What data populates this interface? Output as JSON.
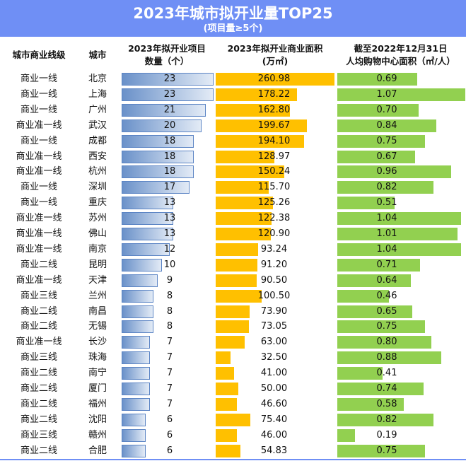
{
  "header": {
    "title": "2023年城市拟开业量TOP25",
    "subtitle": "(项目量≥5个)"
  },
  "columns": {
    "tier": "城市商业线级",
    "city": "城市",
    "count_l1": "2023年拟开业项目",
    "count_l2": "数量（个）",
    "area_l1": "2023年拟开业商业面积",
    "area_l2": "(万㎡)",
    "percap_l1": "截至2022年12月31日",
    "percap_l2": "人均购物中心面积（㎡/人）"
  },
  "colors": {
    "banner": "#6f8ff5",
    "count_bar": "#6a91c9",
    "area_bar": "#ffc000",
    "percap_bar": "#92d050"
  },
  "chart_data": {
    "type": "table",
    "rows": [
      {
        "tier": "商业一线",
        "city": "北京",
        "count": "23",
        "area": "260.98",
        "percap": "0.69"
      },
      {
        "tier": "商业一线",
        "city": "上海",
        "count": "23",
        "area": "178.22",
        "percap": "1.07"
      },
      {
        "tier": "商业一线",
        "city": "广州",
        "count": "21",
        "area": "162.80",
        "percap": "0.70"
      },
      {
        "tier": "商业准一线",
        "city": "武汉",
        "count": "20",
        "area": "199.67",
        "percap": "0.84"
      },
      {
        "tier": "商业一线",
        "city": "成都",
        "count": "18",
        "area": "194.10",
        "percap": "0.75"
      },
      {
        "tier": "商业准一线",
        "city": "西安",
        "count": "18",
        "area": "128.97",
        "percap": "0.67"
      },
      {
        "tier": "商业准一线",
        "city": "杭州",
        "count": "18",
        "area": "150.24",
        "percap": "0.96"
      },
      {
        "tier": "商业一线",
        "city": "深圳",
        "count": "17",
        "area": "115.70",
        "percap": "0.82"
      },
      {
        "tier": "商业一线",
        "city": "重庆",
        "count": "13",
        "area": "125.26",
        "percap": "0.51"
      },
      {
        "tier": "商业准一线",
        "city": "苏州",
        "count": "13",
        "area": "122.38",
        "percap": "1.04"
      },
      {
        "tier": "商业准一线",
        "city": "佛山",
        "count": "13",
        "area": "120.90",
        "percap": "1.01"
      },
      {
        "tier": "商业准一线",
        "city": "南京",
        "count": "12",
        "area": "93.24",
        "percap": "1.04"
      },
      {
        "tier": "商业二线",
        "city": "昆明",
        "count": "10",
        "area": "91.20",
        "percap": "0.71"
      },
      {
        "tier": "商业准一线",
        "city": "天津",
        "count": "9",
        "area": "90.50",
        "percap": "0.64"
      },
      {
        "tier": "商业三线",
        "city": "兰州",
        "count": "8",
        "area": "100.50",
        "percap": "0.46"
      },
      {
        "tier": "商业二线",
        "city": "南昌",
        "count": "8",
        "area": "73.90",
        "percap": "0.65"
      },
      {
        "tier": "商业二线",
        "city": "无锡",
        "count": "8",
        "area": "73.05",
        "percap": "0.75"
      },
      {
        "tier": "商业准一线",
        "city": "长沙",
        "count": "7",
        "area": "63.00",
        "percap": "0.80"
      },
      {
        "tier": "商业三线",
        "city": "珠海",
        "count": "7",
        "area": "32.50",
        "percap": "0.88"
      },
      {
        "tier": "商业二线",
        "city": "南宁",
        "count": "7",
        "area": "41.00",
        "percap": "0.41"
      },
      {
        "tier": "商业二线",
        "city": "厦门",
        "count": "7",
        "area": "50.00",
        "percap": "0.74"
      },
      {
        "tier": "商业二线",
        "city": "福州",
        "count": "7",
        "area": "46.60",
        "percap": "0.58"
      },
      {
        "tier": "商业二线",
        "city": "沈阳",
        "count": "6",
        "area": "75.40",
        "percap": "0.82"
      },
      {
        "tier": "商业三线",
        "city": "赣州",
        "count": "6",
        "area": "46.00",
        "percap": "0.19"
      },
      {
        "tier": "商业二线",
        "city": "合肥",
        "count": "6",
        "area": "54.83",
        "percap": "0.75"
      }
    ]
  }
}
